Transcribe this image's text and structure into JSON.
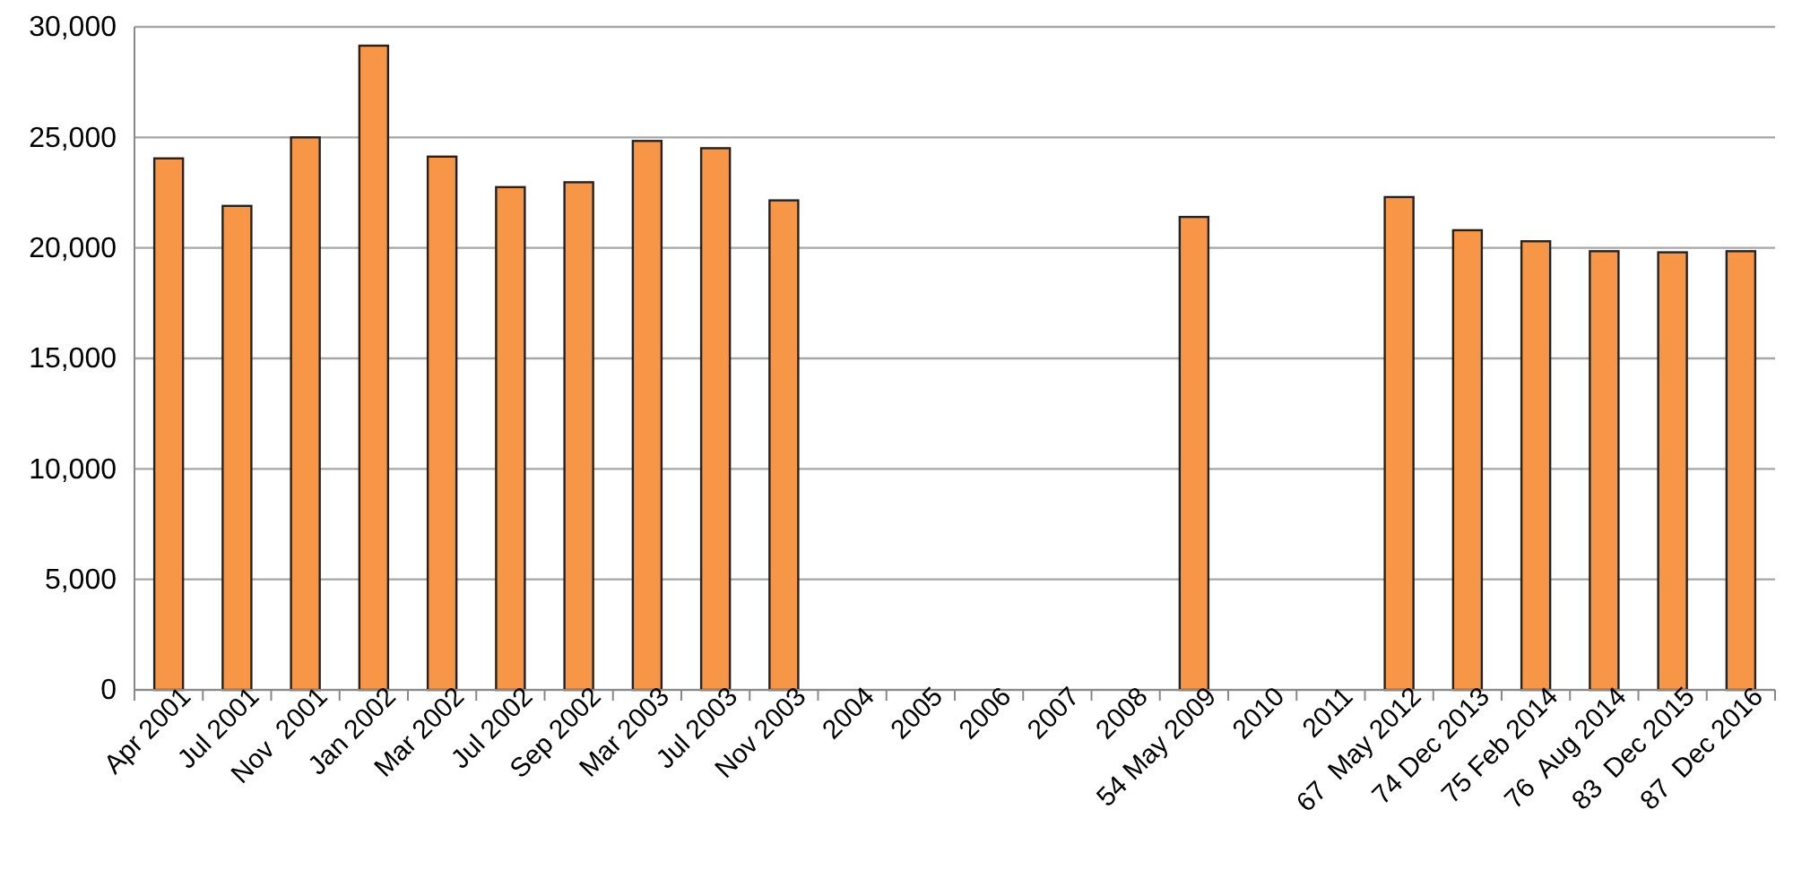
{
  "chart_data": {
    "type": "bar",
    "categories": [
      "Apr 2001",
      "Jul 2001",
      "Nov  2001",
      "Jan 2002",
      "Mar 2002",
      "Jul 2002",
      "Sep 2002",
      "Mar 2003",
      "Jul 2003",
      "Nov 2003",
      "2004",
      "2005",
      "2006",
      "2007",
      "2008",
      "54 May 2009",
      "2010",
      "2011",
      "67  May 2012",
      "74 Dec 2013",
      "75 Feb 2014",
      "76  Aug 2014",
      "83  Dec 2015",
      "87  Dec 2016"
    ],
    "values": [
      24050,
      21900,
      25000,
      29150,
      24130,
      22750,
      22970,
      24840,
      24510,
      22150,
      null,
      null,
      null,
      null,
      null,
      21400,
      null,
      null,
      22300,
      20800,
      20300,
      19850,
      19800,
      19850
    ],
    "color": "#f79646",
    "ylim": [
      0,
      30000
    ],
    "yticks": [
      {
        "value": 0,
        "label": "0"
      },
      {
        "value": 5000,
        "label": "5,000"
      },
      {
        "value": 10000,
        "label": "10,000"
      },
      {
        "value": 15000,
        "label": "15,000"
      },
      {
        "value": 20000,
        "label": "20,000"
      },
      {
        "value": 25000,
        "label": "25,000"
      },
      {
        "value": 30000,
        "label": "30,000"
      }
    ],
    "grid": "y"
  }
}
